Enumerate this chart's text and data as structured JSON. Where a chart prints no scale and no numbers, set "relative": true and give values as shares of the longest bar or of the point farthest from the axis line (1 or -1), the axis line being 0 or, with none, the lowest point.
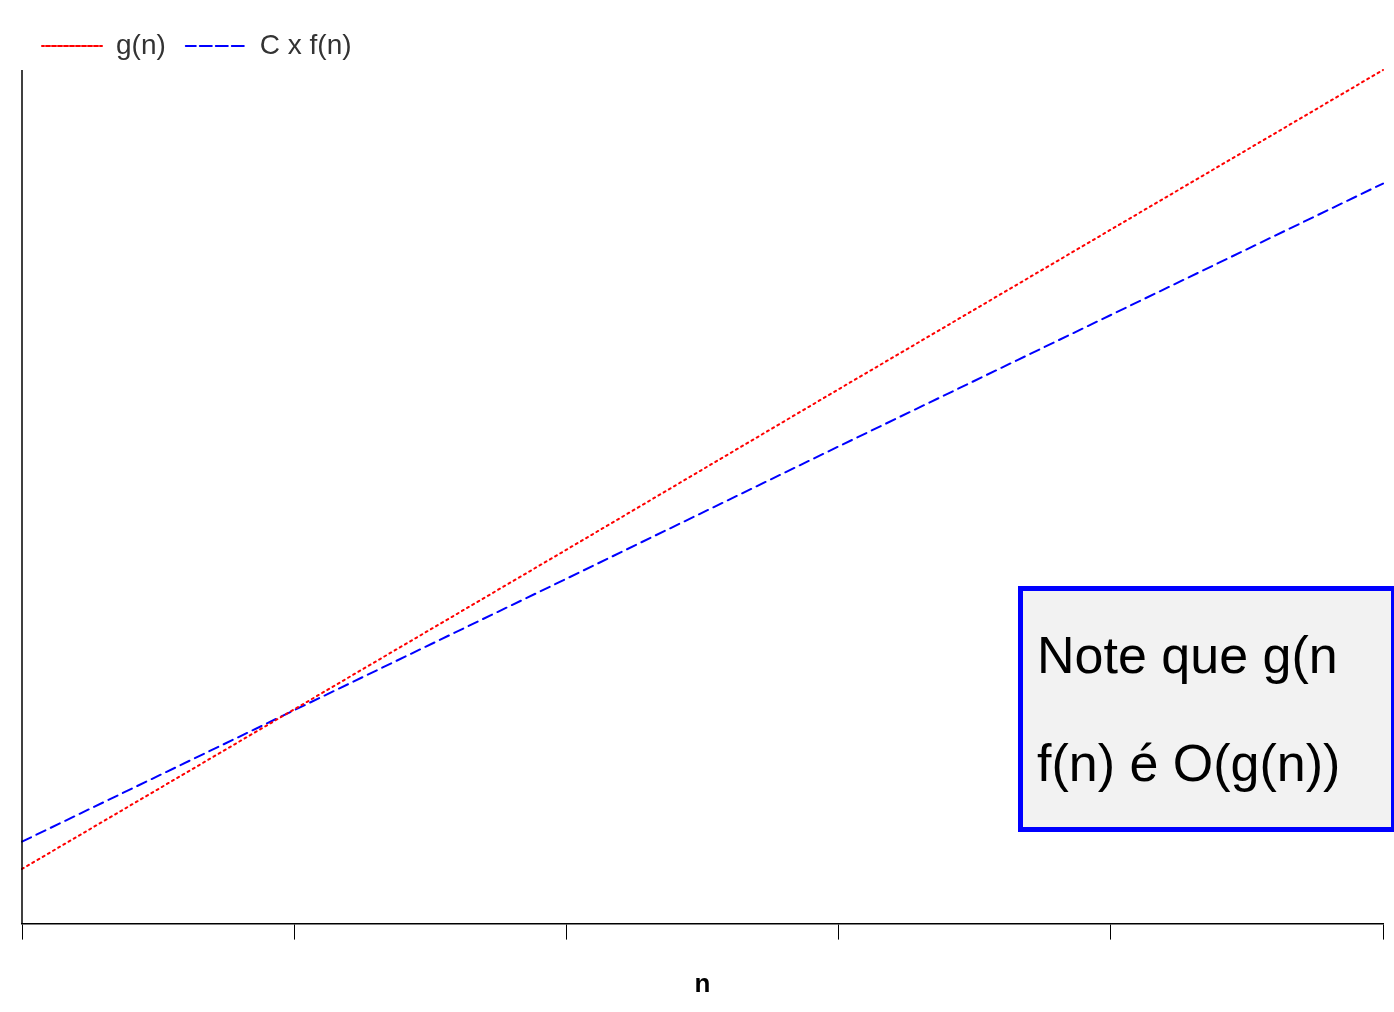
{
  "chart_data": {
    "type": "line",
    "xlabel": "n",
    "relative": true,
    "categories": [
      null,
      null,
      null,
      null,
      null,
      null
    ],
    "series": [
      {
        "name": "g(n)",
        "color": "#ff0000",
        "line_style": "dotted",
        "values": [
          0.064,
          0.251,
          0.438,
          0.626,
          0.813,
          1.0
        ]
      },
      {
        "name": "C x f(n)",
        "color": "#0000ff",
        "line_style": "dashed",
        "values": [
          0.096,
          0.25,
          0.404,
          0.559,
          0.713,
          0.867
        ]
      }
    ],
    "marker": "none",
    "grid": false,
    "legend": "top left",
    "annotations": [
      "Note que g(n",
      "f(n) é O(g(n))"
    ]
  }
}
